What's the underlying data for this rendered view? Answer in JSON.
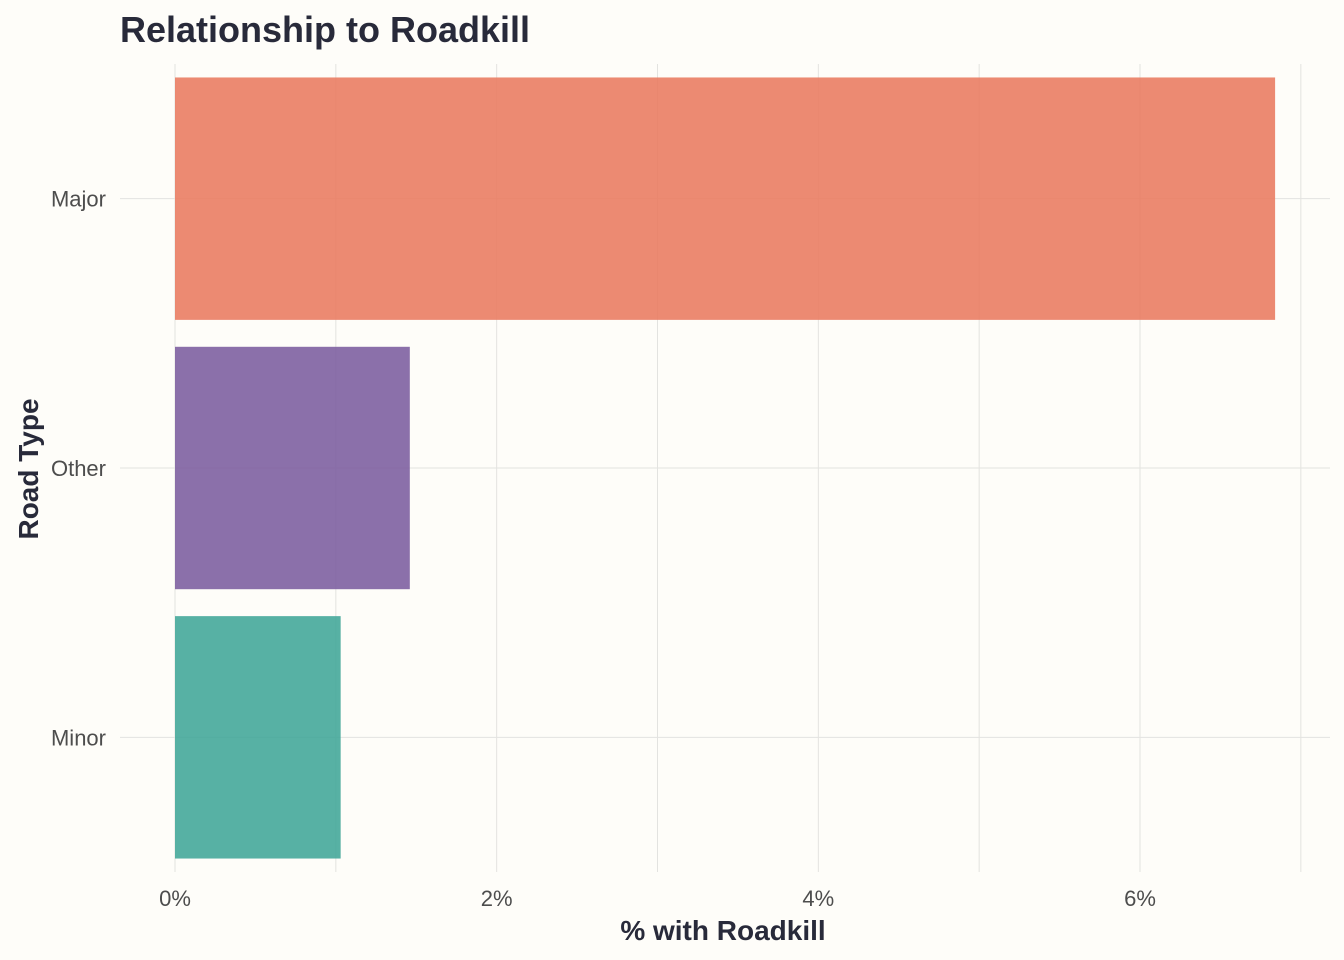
{
  "chart_data": {
    "type": "bar",
    "orientation": "horizontal",
    "title": "Relationship to Roadkill",
    "xlabel": "% with Roadkill",
    "ylabel": "Road Type",
    "categories": [
      "Major",
      "Other",
      "Minor"
    ],
    "values": [
      6.84,
      1.46,
      1.03
    ],
    "colors": [
      "#e97a5f",
      "#7b5c9e",
      "#40a697"
    ],
    "bar_opacity": 0.88,
    "xlim": [
      0,
      7.2
    ],
    "xticks": [
      0,
      2,
      4,
      6
    ],
    "xtick_labels": [
      "0%",
      "2%",
      "4%",
      "6%"
    ],
    "grid": true,
    "legend": "none"
  }
}
